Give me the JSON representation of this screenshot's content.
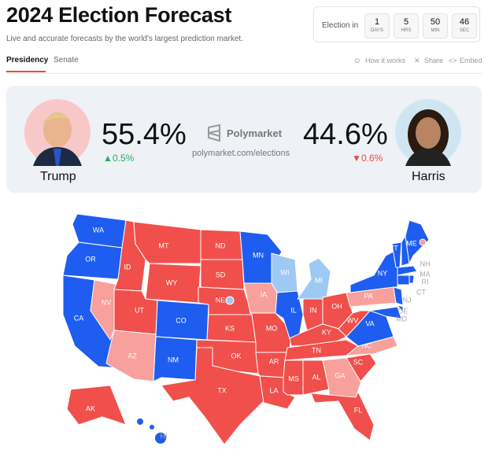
{
  "header": {
    "title": "2024 Election Forecast",
    "subtitle": "Live and accurate forecasts by the world's largest prediction market."
  },
  "countdown": {
    "label": "Election in",
    "items": [
      {
        "value": "1",
        "unit": "DAYS"
      },
      {
        "value": "5",
        "unit": "HRS"
      },
      {
        "value": "50",
        "unit": "MIN"
      },
      {
        "value": "46",
        "unit": "SEC"
      }
    ]
  },
  "tabs": [
    "Presidency",
    "Senate"
  ],
  "links": [
    "How it works",
    "Share",
    "Embed"
  ],
  "candidates": [
    {
      "name": "Trump",
      "percent": "55.4%",
      "change": "0.5%"
    },
    {
      "name": "Harris",
      "percent": "44.6%",
      "change": "0.6%"
    }
  ],
  "brand": {
    "name": "Polymarket",
    "url": "polymarket.com/elections"
  },
  "map": {
    "colors": {
      "R": "#f04f4c",
      "r": "#f7a09c",
      "D": "#1e5df0",
      "d": "#9ec9f5"
    },
    "states": [
      {
        "label": "WA",
        "party": "D"
      },
      {
        "label": "OR",
        "party": "D"
      },
      {
        "label": "CA",
        "party": "D"
      },
      {
        "label": "NV",
        "party": "r"
      },
      {
        "label": "ID",
        "party": "R"
      },
      {
        "label": "MT",
        "party": "R"
      },
      {
        "label": "WY",
        "party": "R"
      },
      {
        "label": "UT",
        "party": "R"
      },
      {
        "label": "AZ",
        "party": "r"
      },
      {
        "label": "CO",
        "party": "D"
      },
      {
        "label": "NM",
        "party": "D"
      },
      {
        "label": "ND",
        "party": "R"
      },
      {
        "label": "SD",
        "party": "R"
      },
      {
        "label": "NE",
        "party": "R"
      },
      {
        "label": "KS",
        "party": "R"
      },
      {
        "label": "OK",
        "party": "R"
      },
      {
        "label": "TX",
        "party": "R"
      },
      {
        "label": "MN",
        "party": "D"
      },
      {
        "label": "IA",
        "party": "r"
      },
      {
        "label": "MO",
        "party": "R"
      },
      {
        "label": "AR",
        "party": "R"
      },
      {
        "label": "LA",
        "party": "R"
      },
      {
        "label": "WI",
        "party": "d"
      },
      {
        "label": "IL",
        "party": "D"
      },
      {
        "label": "MI",
        "party": "d"
      },
      {
        "label": "IN",
        "party": "R"
      },
      {
        "label": "OH",
        "party": "R"
      },
      {
        "label": "KY",
        "party": "R"
      },
      {
        "label": "TN",
        "party": "R"
      },
      {
        "label": "MS",
        "party": "R"
      },
      {
        "label": "AL",
        "party": "R"
      },
      {
        "label": "GA",
        "party": "r"
      },
      {
        "label": "FL",
        "party": "R"
      },
      {
        "label": "SC",
        "party": "R"
      },
      {
        "label": "NC",
        "party": "r"
      },
      {
        "label": "VA",
        "party": "D"
      },
      {
        "label": "WV",
        "party": "R"
      },
      {
        "label": "PA",
        "party": "r"
      },
      {
        "label": "NY",
        "party": "D"
      },
      {
        "label": "VT",
        "party": "D"
      },
      {
        "label": "NH",
        "party": "D"
      },
      {
        "label": "ME",
        "party": "D"
      },
      {
        "label": "MA",
        "party": "D"
      },
      {
        "label": "RI",
        "party": "D"
      },
      {
        "label": "CT",
        "party": "D"
      },
      {
        "label": "NJ",
        "party": "D"
      },
      {
        "label": "DE",
        "party": "D"
      },
      {
        "label": "MD",
        "party": "D"
      },
      {
        "label": "AK",
        "party": "R"
      },
      {
        "label": "HI",
        "party": "D"
      }
    ]
  }
}
